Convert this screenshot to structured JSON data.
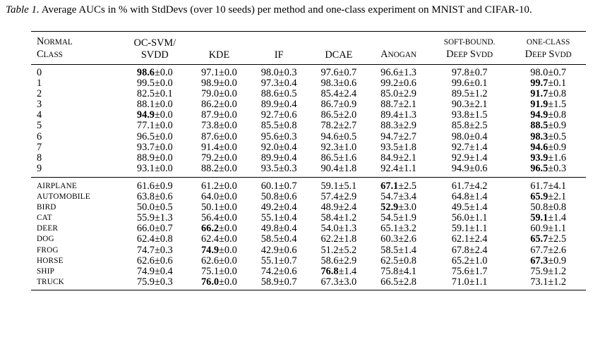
{
  "caption": {
    "label": "Table 1.",
    "text": "Average AUCs in % with StdDevs (over 10 seeds) per method and one-class experiment on MNIST and CIFAR-10."
  },
  "header": {
    "normal_class": [
      "Normal",
      "Class"
    ],
    "columns": [
      [
        "OC-SVM/",
        "SVDD"
      ],
      [
        "KDE"
      ],
      [
        "IF"
      ],
      [
        "DCAE"
      ],
      [
        "AnoGAN"
      ],
      [
        "soft-bound.",
        "Deep SVDD"
      ],
      [
        "one-class",
        "Deep SVDD"
      ]
    ]
  },
  "mnist_rows": [
    {
      "label": "0",
      "cells": [
        {
          "m": "98.6",
          "s": "0.0",
          "b": true
        },
        {
          "m": "97.1",
          "s": "0.0"
        },
        {
          "m": "98.0",
          "s": "0.3"
        },
        {
          "m": "97.6",
          "s": "0.7"
        },
        {
          "m": "96.6",
          "s": "1.3"
        },
        {
          "m": "97.8",
          "s": "0.7"
        },
        {
          "m": "98.0",
          "s": "0.7"
        }
      ]
    },
    {
      "label": "1",
      "cells": [
        {
          "m": "99.5",
          "s": "0.0"
        },
        {
          "m": "98.9",
          "s": "0.0"
        },
        {
          "m": "97.3",
          "s": "0.4"
        },
        {
          "m": "98.3",
          "s": "0.6"
        },
        {
          "m": "99.2",
          "s": "0.6"
        },
        {
          "m": "99.6",
          "s": "0.1"
        },
        {
          "m": "99.7",
          "s": "0.1",
          "b": true
        }
      ]
    },
    {
      "label": "2",
      "cells": [
        {
          "m": "82.5",
          "s": "0.1"
        },
        {
          "m": "79.0",
          "s": "0.0"
        },
        {
          "m": "88.6",
          "s": "0.5"
        },
        {
          "m": "85.4",
          "s": "2.4"
        },
        {
          "m": "85.0",
          "s": "2.9"
        },
        {
          "m": "89.5",
          "s": "1.2"
        },
        {
          "m": "91.7",
          "s": "0.8",
          "b": true
        }
      ]
    },
    {
      "label": "3",
      "cells": [
        {
          "m": "88.1",
          "s": "0.0"
        },
        {
          "m": "86.2",
          "s": "0.0"
        },
        {
          "m": "89.9",
          "s": "0.4"
        },
        {
          "m": "86.7",
          "s": "0.9"
        },
        {
          "m": "88.7",
          "s": "2.1"
        },
        {
          "m": "90.3",
          "s": "2.1"
        },
        {
          "m": "91.9",
          "s": "1.5",
          "b": true
        }
      ]
    },
    {
      "label": "4",
      "cells": [
        {
          "m": "94.9",
          "s": "0.0",
          "b": true
        },
        {
          "m": "87.9",
          "s": "0.0"
        },
        {
          "m": "92.7",
          "s": "0.6"
        },
        {
          "m": "86.5",
          "s": "2.0"
        },
        {
          "m": "89.4",
          "s": "1.3"
        },
        {
          "m": "93.8",
          "s": "1.5"
        },
        {
          "m": "94.9",
          "s": "0.8",
          "b": true
        }
      ]
    },
    {
      "label": "5",
      "cells": [
        {
          "m": "77.1",
          "s": "0.0"
        },
        {
          "m": "73.8",
          "s": "0.0"
        },
        {
          "m": "85.5",
          "s": "0.8"
        },
        {
          "m": "78.2",
          "s": "2.7"
        },
        {
          "m": "88.3",
          "s": "2.9"
        },
        {
          "m": "85.8",
          "s": "2.5"
        },
        {
          "m": "88.5",
          "s": "0.9",
          "b": true
        }
      ]
    },
    {
      "label": "6",
      "cells": [
        {
          "m": "96.5",
          "s": "0.0"
        },
        {
          "m": "87.6",
          "s": "0.0"
        },
        {
          "m": "95.6",
          "s": "0.3"
        },
        {
          "m": "94.6",
          "s": "0.5"
        },
        {
          "m": "94.7",
          "s": "2.7"
        },
        {
          "m": "98.0",
          "s": "0.4"
        },
        {
          "m": "98.3",
          "s": "0.5",
          "b": true
        }
      ]
    },
    {
      "label": "7",
      "cells": [
        {
          "m": "93.7",
          "s": "0.0"
        },
        {
          "m": "91.4",
          "s": "0.0"
        },
        {
          "m": "92.0",
          "s": "0.4"
        },
        {
          "m": "92.3",
          "s": "1.0"
        },
        {
          "m": "93.5",
          "s": "1.8"
        },
        {
          "m": "92.7",
          "s": "1.4"
        },
        {
          "m": "94.6",
          "s": "0.9",
          "b": true
        }
      ]
    },
    {
      "label": "8",
      "cells": [
        {
          "m": "88.9",
          "s": "0.0"
        },
        {
          "m": "79.2",
          "s": "0.0"
        },
        {
          "m": "89.9",
          "s": "0.4"
        },
        {
          "m": "86.5",
          "s": "1.6"
        },
        {
          "m": "84.9",
          "s": "2.1"
        },
        {
          "m": "92.9",
          "s": "1.4"
        },
        {
          "m": "93.9",
          "s": "1.6",
          "b": true
        }
      ]
    },
    {
      "label": "9",
      "cells": [
        {
          "m": "93.1",
          "s": "0.0"
        },
        {
          "m": "88.2",
          "s": "0.0"
        },
        {
          "m": "93.5",
          "s": "0.3"
        },
        {
          "m": "90.4",
          "s": "1.8"
        },
        {
          "m": "92.4",
          "s": "1.1"
        },
        {
          "m": "94.9",
          "s": "0.6"
        },
        {
          "m": "96.5",
          "s": "0.3",
          "b": true
        }
      ]
    }
  ],
  "cifar_rows": [
    {
      "label": "airplane",
      "cells": [
        {
          "m": "61.6",
          "s": "0.9"
        },
        {
          "m": "61.2",
          "s": "0.0"
        },
        {
          "m": "60.1",
          "s": "0.7"
        },
        {
          "m": "59.1",
          "s": "5.1"
        },
        {
          "m": "67.1",
          "s": "2.5",
          "b": true
        },
        {
          "m": "61.7",
          "s": "4.2"
        },
        {
          "m": "61.7",
          "s": "4.1"
        }
      ]
    },
    {
      "label": "automobile",
      "cells": [
        {
          "m": "63.8",
          "s": "0.6"
        },
        {
          "m": "64.0",
          "s": "0.0"
        },
        {
          "m": "50.8",
          "s": "0.6"
        },
        {
          "m": "57.4",
          "s": "2.9"
        },
        {
          "m": "54.7",
          "s": "3.4"
        },
        {
          "m": "64.8",
          "s": "1.4"
        },
        {
          "m": "65.9",
          "s": "2.1",
          "b": true
        }
      ]
    },
    {
      "label": "bird",
      "cells": [
        {
          "m": "50.0",
          "s": "0.5"
        },
        {
          "m": "50.1",
          "s": "0.0"
        },
        {
          "m": "49.2",
          "s": "0.4"
        },
        {
          "m": "48.9",
          "s": "2.4"
        },
        {
          "m": "52.9",
          "s": "3.0",
          "b": true
        },
        {
          "m": "49.5",
          "s": "1.4"
        },
        {
          "m": "50.8",
          "s": "0.8"
        }
      ]
    },
    {
      "label": "cat",
      "cells": [
        {
          "m": "55.9",
          "s": "1.3"
        },
        {
          "m": "56.4",
          "s": "0.0"
        },
        {
          "m": "55.1",
          "s": "0.4"
        },
        {
          "m": "58.4",
          "s": "1.2"
        },
        {
          "m": "54.5",
          "s": "1.9"
        },
        {
          "m": "56.0",
          "s": "1.1"
        },
        {
          "m": "59.1",
          "s": "1.4",
          "b": true
        }
      ]
    },
    {
      "label": "deer",
      "cells": [
        {
          "m": "66.0",
          "s": "0.7"
        },
        {
          "m": "66.2",
          "s": "0.0",
          "b": true
        },
        {
          "m": "49.8",
          "s": "0.4"
        },
        {
          "m": "54.0",
          "s": "1.3"
        },
        {
          "m": "65.1",
          "s": "3.2"
        },
        {
          "m": "59.1",
          "s": "1.1"
        },
        {
          "m": "60.9",
          "s": "1.1"
        }
      ]
    },
    {
      "label": "dog",
      "cells": [
        {
          "m": "62.4",
          "s": "0.8"
        },
        {
          "m": "62.4",
          "s": "0.0"
        },
        {
          "m": "58.5",
          "s": "0.4"
        },
        {
          "m": "62.2",
          "s": "1.8"
        },
        {
          "m": "60.3",
          "s": "2.6"
        },
        {
          "m": "62.1",
          "s": "2.4"
        },
        {
          "m": "65.7",
          "s": "2.5",
          "b": true
        }
      ]
    },
    {
      "label": "frog",
      "cells": [
        {
          "m": "74.7",
          "s": "0.3"
        },
        {
          "m": "74.9",
          "s": "0.0",
          "b": true
        },
        {
          "m": "42.9",
          "s": "0.6"
        },
        {
          "m": "51.2",
          "s": "5.2"
        },
        {
          "m": "58.5",
          "s": "1.4"
        },
        {
          "m": "67.8",
          "s": "2.4"
        },
        {
          "m": "67.7",
          "s": "2.6"
        }
      ]
    },
    {
      "label": "horse",
      "cells": [
        {
          "m": "62.6",
          "s": "0.6"
        },
        {
          "m": "62.6",
          "s": "0.0"
        },
        {
          "m": "55.1",
          "s": "0.7"
        },
        {
          "m": "58.6",
          "s": "2.9"
        },
        {
          "m": "62.5",
          "s": "0.8"
        },
        {
          "m": "65.2",
          "s": "1.0"
        },
        {
          "m": "67.3",
          "s": "0.9",
          "b": true
        }
      ]
    },
    {
      "label": "ship",
      "cells": [
        {
          "m": "74.9",
          "s": "0.4"
        },
        {
          "m": "75.1",
          "s": "0.0"
        },
        {
          "m": "74.2",
          "s": "0.6"
        },
        {
          "m": "76.8",
          "s": "1.4",
          "b": true
        },
        {
          "m": "75.8",
          "s": "4.1"
        },
        {
          "m": "75.6",
          "s": "1.7"
        },
        {
          "m": "75.9",
          "s": "1.2"
        }
      ]
    },
    {
      "label": "truck",
      "cells": [
        {
          "m": "75.9",
          "s": "0.3"
        },
        {
          "m": "76.0",
          "s": "0.0",
          "b": true
        },
        {
          "m": "58.9",
          "s": "0.7"
        },
        {
          "m": "67.3",
          "s": "3.0"
        },
        {
          "m": "66.5",
          "s": "2.8"
        },
        {
          "m": "71.0",
          "s": "1.1"
        },
        {
          "m": "73.1",
          "s": "1.2"
        }
      ]
    }
  ]
}
